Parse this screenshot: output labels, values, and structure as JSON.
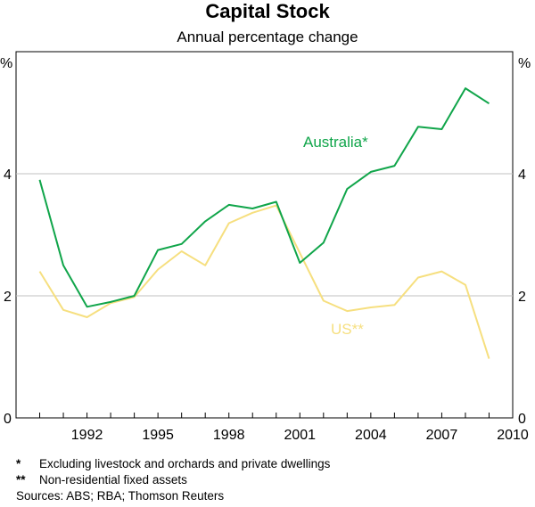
{
  "chart_data": {
    "type": "line",
    "title": "Capital Stock",
    "subtitle": "Annual percentage change",
    "y_unit_left": "%",
    "y_unit_right": "%",
    "x_range": [
      1989,
      2010
    ],
    "ylim": [
      0,
      6
    ],
    "y_ticks": [
      0,
      2,
      4
    ],
    "x_ticks": [
      1992,
      1995,
      1998,
      2001,
      2004,
      2007,
      2010
    ],
    "gridlines": [
      2,
      4
    ],
    "series": [
      {
        "name": "Australia*",
        "color": "#10a54a",
        "x": [
          1990,
          1991,
          1992,
          1993,
          1994,
          1995,
          1996,
          1997,
          1998,
          1999,
          2000,
          2001,
          2002,
          2003,
          2004,
          2005,
          2006,
          2007,
          2008,
          2009
        ],
        "values": [
          3.9,
          2.5,
          1.82,
          1.9,
          2.0,
          2.75,
          2.85,
          3.22,
          3.49,
          3.43,
          3.54,
          2.54,
          2.87,
          3.75,
          4.03,
          4.13,
          4.77,
          4.73,
          5.4,
          5.15
        ]
      },
      {
        "name": "US**",
        "color": "#f6df7f",
        "x": [
          1990,
          1991,
          1992,
          1993,
          1994,
          1995,
          1996,
          1997,
          1998,
          1999,
          2000,
          2001,
          2002,
          2003,
          2004,
          2005,
          2006,
          2007,
          2008,
          2009
        ],
        "values": [
          2.4,
          1.77,
          1.65,
          1.88,
          1.98,
          2.43,
          2.73,
          2.5,
          3.19,
          3.36,
          3.48,
          2.7,
          1.92,
          1.75,
          1.81,
          1.85,
          2.3,
          2.4,
          2.18,
          0.97
        ]
      }
    ],
    "annotations": [
      "Australia*",
      "US**"
    ]
  },
  "footnotes": [
    {
      "mark": "*",
      "text": "Excluding livestock and orchards and private dwellings"
    },
    {
      "mark": "**",
      "text": "Non-residential fixed assets"
    }
  ],
  "sources": "Sources: ABS; RBA; Thomson Reuters"
}
